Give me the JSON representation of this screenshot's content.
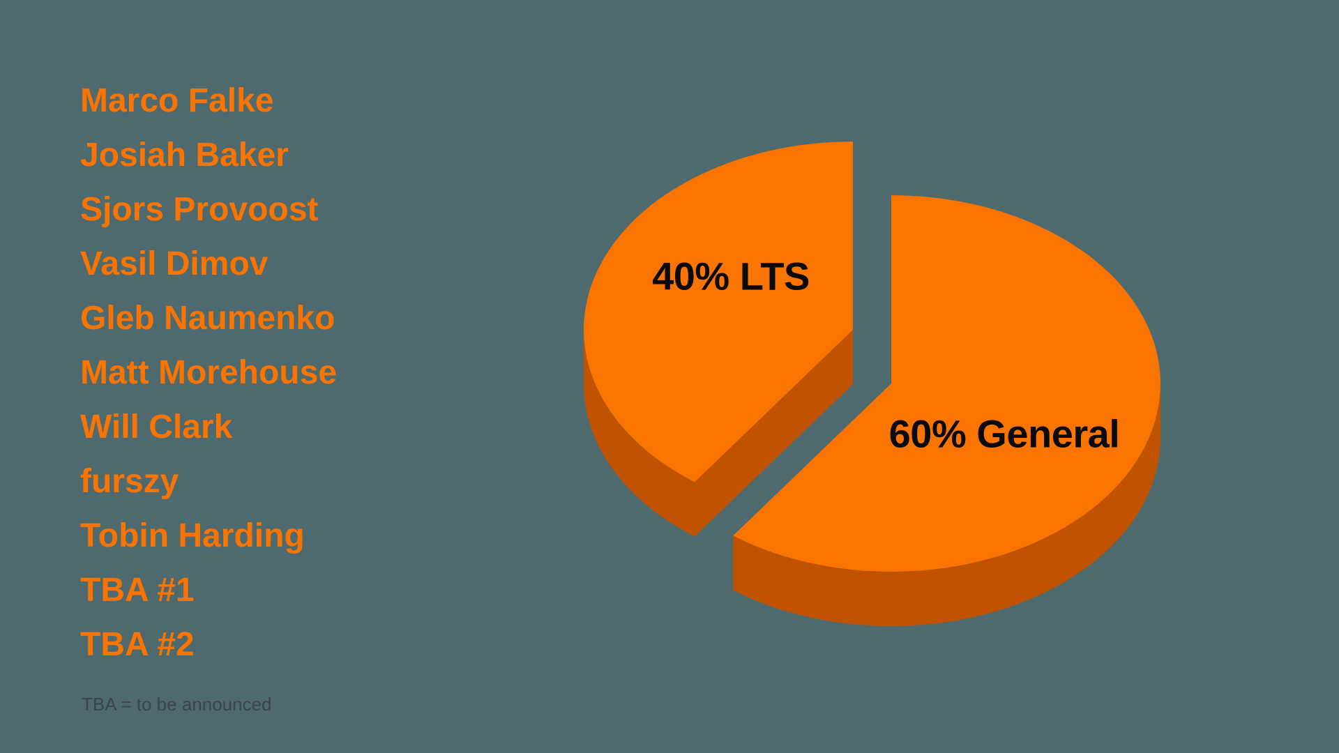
{
  "background_color": "#4F6A6E",
  "roster": {
    "names": [
      "Marco Falke",
      "Josiah Baker",
      "Sjors Provoost",
      "Vasil Dimov",
      "Gleb Naumenko",
      "Matt Morehouse",
      "Will Clark",
      "furszy",
      "Tobin Harding",
      "TBA #1",
      "TBA #2"
    ],
    "footnote": "TBA = to be announced",
    "text_color": "#F97400",
    "footnote_color": "#3A474A"
  },
  "chart_data": {
    "type": "pie",
    "style": "3d-exploded",
    "title": "",
    "legend": "none",
    "labels_inside": true,
    "slices": [
      {
        "label": "LTS",
        "value": 40,
        "display_label": "40% LTS",
        "exploded": true
      },
      {
        "label": "General",
        "value": 60,
        "display_label": "60% General",
        "exploded": false
      }
    ],
    "colors": {
      "top": "#F97400",
      "side": "#C05200",
      "label_text": "#0A0A0A"
    }
  }
}
